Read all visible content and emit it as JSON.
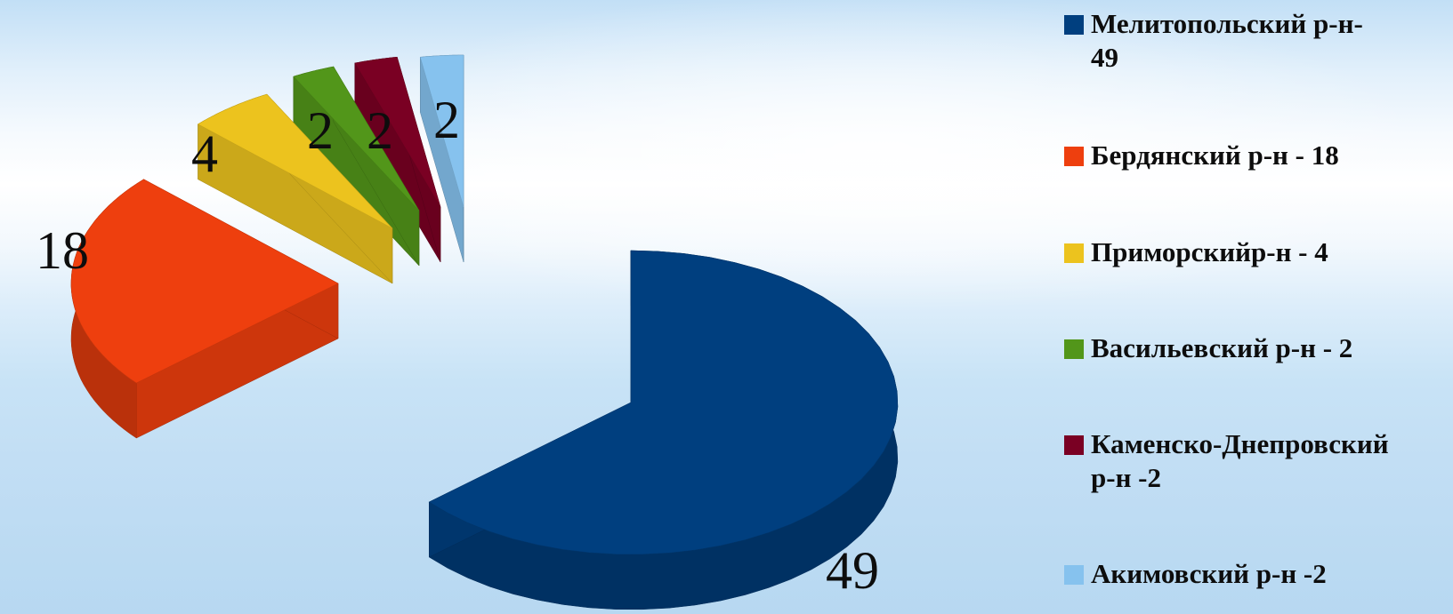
{
  "chart_data": {
    "type": "pie",
    "title": "",
    "slices": [
      {
        "label": "Мелитопольский р-н-\n49",
        "value": 49,
        "color": "#003f7f"
      },
      {
        "label": " Бердянский р-н - 18",
        "value": 18,
        "color": "#ee3f0e"
      },
      {
        "label": "Приморскийр-н - 4",
        "value": 4,
        "color": "#ecc31e"
      },
      {
        "label": "Васильевский р-н - 2",
        "value": 2,
        "color": "#52961a"
      },
      {
        "label": "Каменско-Днепровский\nр-н -2",
        "value": 2,
        "color": "#7a0023"
      },
      {
        "label": "Акимовский р-н -2",
        "value": 2,
        "color": "#86c2ee"
      }
    ],
    "data_labels": [
      "49",
      "18",
      "4",
      "2",
      "2",
      "2"
    ],
    "legend_position": "right",
    "style": "3d-exploded"
  }
}
